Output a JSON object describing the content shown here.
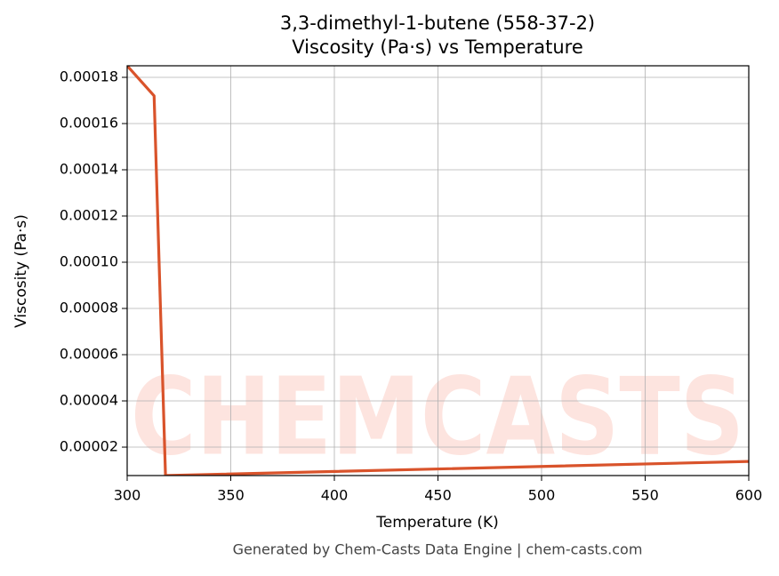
{
  "chart_data": {
    "type": "line",
    "title": "3,3-dimethyl-1-butene (558-37-2)",
    "subtitle": "Viscosity (Pa·s) vs Temperature",
    "x_label": "Temperature (K)",
    "y_label": "Viscosity (Pa·s)",
    "footer": "Generated by Chem-Casts Data Engine | chem-casts.com",
    "watermark": "CHEMCASTS",
    "x": [
      300,
      313,
      318.5,
      600
    ],
    "series": [
      {
        "name": "Viscosity",
        "color": "#d9532b",
        "values": [
          0.000185,
          0.000172,
          7.7e-06,
          1.38e-05
        ]
      }
    ],
    "xlim": [
      300,
      600
    ],
    "xticks": [
      300,
      350,
      400,
      450,
      500,
      550,
      600
    ],
    "ylim": [
      7.7e-06,
      0.000185
    ],
    "yticks": [
      2e-05,
      4e-05,
      6e-05,
      8e-05,
      {
        "value": 0.0001,
        "label": "0.00010"
      },
      0.00012,
      0.00014,
      0.00016,
      0.00018
    ],
    "grid": true
  }
}
